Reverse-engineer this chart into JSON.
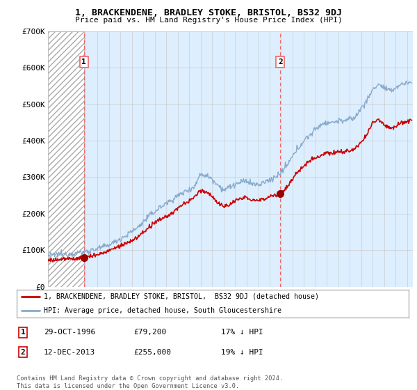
{
  "title": "1, BRACKENDENE, BRADLEY STOKE, BRISTOL, BS32 9DJ",
  "subtitle": "Price paid vs. HM Land Registry's House Price Index (HPI)",
  "ylim": [
    0,
    700000
  ],
  "yticks": [
    0,
    100000,
    200000,
    300000,
    400000,
    500000,
    600000,
    700000
  ],
  "ytick_labels": [
    "£0",
    "£100K",
    "£200K",
    "£300K",
    "£400K",
    "£500K",
    "£600K",
    "£700K"
  ],
  "xlim_start": 1993.7,
  "xlim_end": 2025.5,
  "transaction1_x": 1996.83,
  "transaction1_y": 79200,
  "transaction2_x": 2013.95,
  "transaction2_y": 255000,
  "red_line_color": "#cc0000",
  "blue_line_color": "#88aacc",
  "vline_color": "#ee6666",
  "marker_color": "#990000",
  "plot_bg_color": "#ddeeff",
  "hatch_bg_color": "#ffffff",
  "legend_label1": "1, BRACKENDENE, BRADLEY STOKE, BRISTOL,  BS32 9DJ (detached house)",
  "legend_label2": "HPI: Average price, detached house, South Gloucestershire",
  "table_entries": [
    {
      "label": "1",
      "date": "29-OCT-1996",
      "price": "£79,200",
      "hpi": "17% ↓ HPI"
    },
    {
      "label": "2",
      "date": "12-DEC-2013",
      "price": "£255,000",
      "hpi": "19% ↓ HPI"
    }
  ],
  "footer": "Contains HM Land Registry data © Crown copyright and database right 2024.\nThis data is licensed under the Open Government Licence v3.0.",
  "background_color": "#ffffff"
}
